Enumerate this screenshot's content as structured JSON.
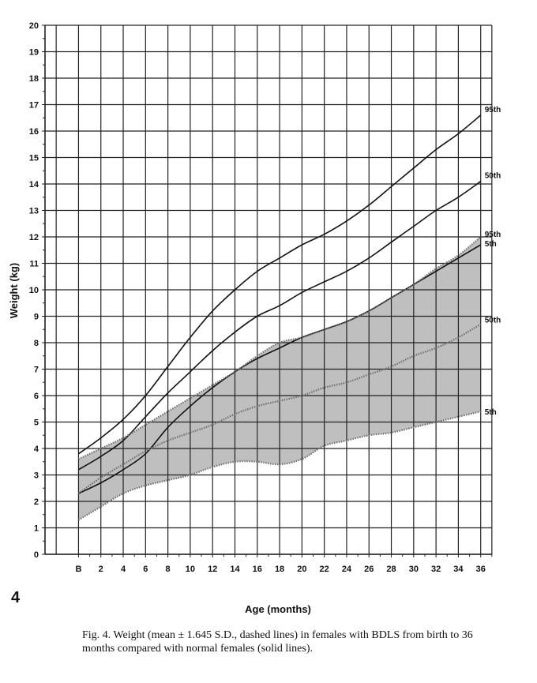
{
  "figure_number": "4",
  "caption": "Fig. 4.  Weight (mean ± 1.645 S.D., dashed lines) in females with BDLS from birth to 36 months compared with normal females (solid lines).",
  "colors": {
    "grid": "#222222",
    "line": "#111111",
    "band": "#a9a9a9",
    "band_edge": "#6e6e6e"
  },
  "chart_data": {
    "type": "line",
    "xlabel": "Age (months)",
    "ylabel": "Weight (kg)",
    "xlim": [
      -3,
      38
    ],
    "ylim": [
      0,
      20
    ],
    "grid": true,
    "x_ticks": [
      0,
      2,
      4,
      6,
      8,
      10,
      12,
      14,
      16,
      18,
      20,
      22,
      24,
      26,
      28,
      30,
      32,
      34,
      36
    ],
    "x_tick_labels": [
      "B",
      "2",
      "4",
      "6",
      "8",
      "10",
      "12",
      "14",
      "16",
      "18",
      "20",
      "22",
      "24",
      "26",
      "28",
      "30",
      "32",
      "34",
      "36"
    ],
    "y_ticks": [
      0,
      1,
      2,
      3,
      4,
      5,
      6,
      7,
      8,
      9,
      10,
      11,
      12,
      13,
      14,
      15,
      16,
      17,
      18,
      19,
      20
    ],
    "x": [
      0,
      2,
      4,
      6,
      8,
      10,
      12,
      14,
      16,
      18,
      20,
      22,
      24,
      26,
      28,
      30,
      32,
      34,
      36
    ],
    "normal_females": [
      {
        "name": "95th",
        "style": "solid",
        "values": [
          3.8,
          4.4,
          5.1,
          6.0,
          7.1,
          8.2,
          9.2,
          10.0,
          10.7,
          11.2,
          11.7,
          12.1,
          12.6,
          13.2,
          13.9,
          14.6,
          15.3,
          15.9,
          16.6
        ]
      },
      {
        "name": "50th",
        "style": "solid",
        "values": [
          3.2,
          3.7,
          4.3,
          5.2,
          6.1,
          6.9,
          7.7,
          8.4,
          9.0,
          9.4,
          9.9,
          10.3,
          10.7,
          11.2,
          11.8,
          12.4,
          13.0,
          13.5,
          14.1
        ]
      },
      {
        "name": "5th",
        "style": "solid",
        "values": [
          2.3,
          2.7,
          3.2,
          3.8,
          4.8,
          5.6,
          6.3,
          6.9,
          7.4,
          7.8,
          8.2,
          8.5,
          8.8,
          9.2,
          9.7,
          10.2,
          10.7,
          11.2,
          11.7
        ]
      }
    ],
    "bdls_females": [
      {
        "name": "95th",
        "style": "dashed",
        "values": [
          3.6,
          4.0,
          4.4,
          4.9,
          5.4,
          5.9,
          6.4,
          6.9,
          7.5,
          8.0,
          8.2,
          8.5,
          8.8,
          9.2,
          9.7,
          10.2,
          10.8,
          11.3,
          12.0
        ]
      },
      {
        "name": "50th",
        "style": "dashed",
        "values": [
          2.3,
          2.9,
          3.4,
          3.9,
          4.3,
          4.6,
          4.9,
          5.3,
          5.6,
          5.8,
          6.0,
          6.3,
          6.5,
          6.8,
          7.1,
          7.5,
          7.8,
          8.2,
          8.7
        ]
      },
      {
        "name": "5th",
        "style": "dashed",
        "values": [
          1.3,
          1.8,
          2.3,
          2.6,
          2.8,
          3.0,
          3.3,
          3.5,
          3.5,
          3.4,
          3.6,
          4.1,
          4.3,
          4.5,
          4.6,
          4.8,
          5.0,
          5.2,
          5.4
        ]
      }
    ],
    "annotations": [
      "95th",
      "50th",
      "95th",
      "5th",
      "50th",
      "5th"
    ]
  }
}
